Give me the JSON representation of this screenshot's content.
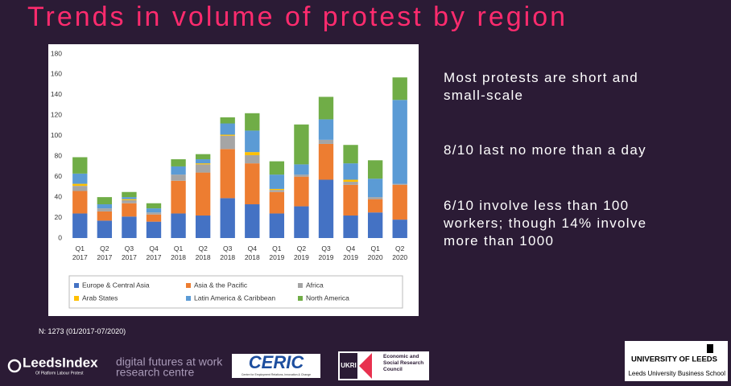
{
  "title": "Trends in volume of protest by region",
  "chart_data": {
    "type": "stacked_bar",
    "categories": [
      "Q1 2017",
      "Q2 2017",
      "Q3 2017",
      "Q4 2017",
      "Q1 2018",
      "Q2 2018",
      "Q3 2018",
      "Q4 2018",
      "Q1 2019",
      "Q2 2019",
      "Q3 2019",
      "Q4 2019",
      "Q1 2020",
      "Q2 2020"
    ],
    "series": [
      {
        "name": "Europe & Central Asia",
        "color": "#4472c4",
        "values": [
          24,
          17,
          21,
          16,
          24,
          22,
          39,
          33,
          24,
          31,
          57,
          22,
          25,
          18
        ]
      },
      {
        "name": "Asia & the Pacific",
        "color": "#ed7d31",
        "values": [
          22,
          9,
          13,
          7,
          32,
          42,
          48,
          40,
          21,
          29,
          35,
          30,
          13,
          34
        ]
      },
      {
        "name": "Africa",
        "color": "#a5a5a5",
        "values": [
          5,
          3,
          3,
          2,
          6,
          8,
          13,
          8,
          2,
          2,
          4,
          3,
          2,
          1
        ]
      },
      {
        "name": "Arab States",
        "color": "#ffc000",
        "values": [
          2,
          0,
          1,
          0,
          0,
          1,
          1,
          3,
          1,
          0,
          0,
          2,
          0,
          0
        ]
      },
      {
        "name": "Latin America & Caribbean",
        "color": "#5b9bd5",
        "values": [
          10,
          4,
          2,
          4,
          8,
          4,
          11,
          21,
          14,
          10,
          20,
          16,
          18,
          82
        ]
      },
      {
        "name": "North America",
        "color": "#70ad47",
        "values": [
          16,
          7,
          5,
          5,
          7,
          5,
          6,
          17,
          13,
          39,
          22,
          18,
          18,
          22
        ]
      }
    ],
    "ylim": [
      0,
      180
    ],
    "yticks": [
      0,
      20,
      40,
      60,
      80,
      100,
      120,
      140,
      160,
      180
    ],
    "grid": false,
    "legend": "bottom"
  },
  "points": [
    "Most protests are short and small-scale",
    "8/10 last no more than a day",
    "6/10 involve less than 100 workers; though 14% involve more than 1000"
  ],
  "note": "N: 1273 (01/2017-07/2020)",
  "logos": {
    "leeds_index": "LeedsIndex",
    "leeds_index_sub": "Of Platform Labour Protest",
    "dfw": "digital futures at work",
    "dfw_sub": "research centre",
    "ceric": "CERIC",
    "ceric_sub": "Centre for Employment Relations, Innovation & Change",
    "ukri": "UKRI",
    "esrc": "Economic and Social Research Council",
    "uol": "UNIVERSITY OF LEEDS",
    "uol_sub": "Leeds University Business School"
  }
}
